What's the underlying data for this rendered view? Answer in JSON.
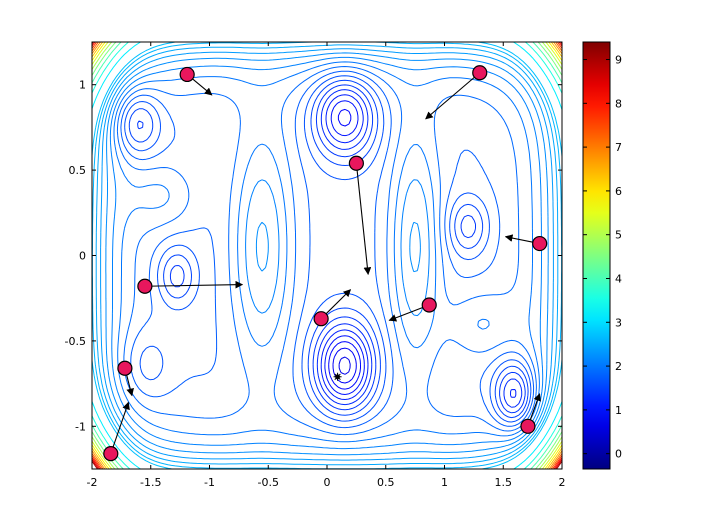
{
  "chart_data": {
    "type": "contour",
    "title": "",
    "xlabel": "",
    "ylabel": "",
    "xlim": [
      -2,
      2
    ],
    "ylim": [
      -1.25,
      1.25
    ],
    "grid": false,
    "x_ticks": [
      "-2",
      "-1.5",
      "-1",
      "-0.5",
      "0",
      "0.5",
      "1",
      "1.5",
      "2"
    ],
    "x_tick_values": [
      -2,
      -1.5,
      -1,
      -0.5,
      0,
      0.5,
      1,
      1.5,
      2
    ],
    "y_ticks": [
      "1",
      "0.5",
      "0",
      "-0.5",
      "-1"
    ],
    "y_tick_values": [
      1,
      0.5,
      0,
      -0.5,
      -1
    ],
    "colorbar": {
      "range": [
        -0.35,
        9.4
      ],
      "ticks": [
        "9",
        "8",
        "7",
        "6",
        "5",
        "4",
        "3",
        "2",
        "1",
        "0"
      ],
      "tick_values": [
        9,
        8,
        7,
        6,
        5,
        4,
        3,
        2,
        1,
        0
      ],
      "colormap": "jet",
      "colors": [
        "#00008f",
        "#0000ff",
        "#00ffff",
        "#ffff00",
        "#ff0000",
        "#800000"
      ]
    },
    "optimum": {
      "x": 0.09,
      "y": -0.71
    },
    "points": [
      {
        "x": -1.19,
        "y": 1.06,
        "arrow_to": [
          -0.98,
          0.94
        ]
      },
      {
        "x": 1.3,
        "y": 1.07,
        "arrow_to": [
          0.84,
          0.8
        ]
      },
      {
        "x": 0.25,
        "y": 0.54,
        "arrow_to": [
          0.35,
          -0.11
        ]
      },
      {
        "x": 1.81,
        "y": 0.07,
        "arrow_to": [
          1.52,
          0.11
        ]
      },
      {
        "x": -1.55,
        "y": -0.18,
        "arrow_to": [
          -0.72,
          -0.17
        ]
      },
      {
        "x": 0.87,
        "y": -0.29,
        "arrow_to": [
          0.53,
          -0.38
        ]
      },
      {
        "x": -0.05,
        "y": -0.37,
        "arrow_to": [
          0.2,
          -0.2
        ]
      },
      {
        "x": -1.72,
        "y": -0.66,
        "arrow_to": [
          -1.66,
          -0.82
        ]
      },
      {
        "x": -1.84,
        "y": -1.16,
        "arrow_to": [
          -1.69,
          -0.86
        ]
      },
      {
        "x": 1.71,
        "y": -1.0,
        "arrow_to": [
          1.81,
          -0.81
        ]
      }
    ],
    "marker_color": "#e8175d"
  }
}
